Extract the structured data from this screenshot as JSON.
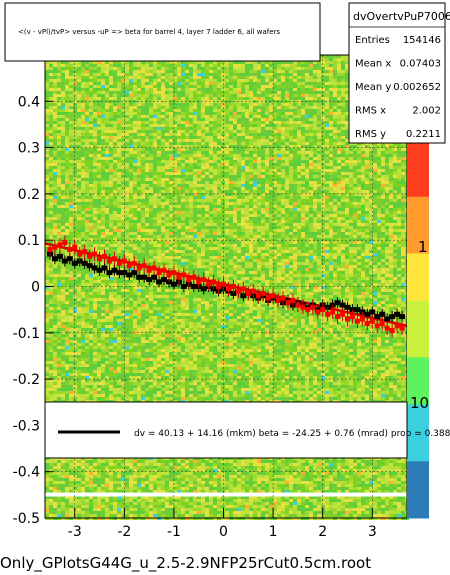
{
  "chart_data": {
    "type": "scatter",
    "title": "<(v - vPl)/tvP> versus -uP => beta for barrel 4, layer 7 ladder 6, all wafers",
    "footer": "Only_GPlotsG44G_u_2.5-2.9NFP25rCut0.5cm.root",
    "xlim": [
      -3.6,
      3.7
    ],
    "ylim": [
      -0.5,
      0.5
    ],
    "x_ticks": [
      -3,
      -2,
      -1,
      0,
      1,
      2,
      3
    ],
    "y_ticks": [
      -0.5,
      -0.4,
      -0.3,
      -0.2,
      -0.1,
      0,
      0.1,
      0.2,
      0.3,
      0.4
    ],
    "y_tick_labels": [
      "-0.5",
      "-0.4",
      "-0.3",
      "-0.2",
      "-0.1",
      "0",
      "0.1",
      "0.2",
      "0.3",
      "0.4"
    ],
    "x_tick_labels": [
      "-3",
      "-2",
      "-1",
      "0",
      "1",
      "2",
      "3"
    ],
    "colorbar_labels": [
      "10",
      "1",
      "10"
    ],
    "stats": {
      "name": "dvOvertvPuP7006",
      "rows": [
        {
          "label": "Entries",
          "value": "154146"
        },
        {
          "label": "Mean x",
          "value": "0.07403"
        },
        {
          "label": "Mean y",
          "value": "0.002652"
        },
        {
          "label": "RMS x",
          "value": "2.002"
        },
        {
          "label": "RMS y",
          "value": "0.2211"
        }
      ]
    },
    "fit_legend": "dv =   40.13 +  14.16 (mkm) beta =  -24.25 +  0.76 (mrad) prob = 0.388",
    "fit_line": {
      "x0": -3.6,
      "y0": 0.093,
      "x1": 3.7,
      "y1": -0.085
    },
    "black_series": [
      [
        -3.5,
        0.07
      ],
      [
        -3.4,
        0.06
      ],
      [
        -3.3,
        0.065
      ],
      [
        -3.2,
        0.055
      ],
      [
        -3.1,
        0.06
      ],
      [
        -3.0,
        0.05
      ],
      [
        -2.9,
        0.055
      ],
      [
        -2.8,
        0.05
      ],
      [
        -2.7,
        0.045
      ],
      [
        -2.6,
        0.04
      ],
      [
        -2.5,
        0.035
      ],
      [
        -2.4,
        0.04
      ],
      [
        -2.3,
        0.03
      ],
      [
        -2.2,
        0.035
      ],
      [
        -2.1,
        0.03
      ],
      [
        -2.0,
        0.03
      ],
      [
        -1.9,
        0.025
      ],
      [
        -1.8,
        0.03
      ],
      [
        -1.7,
        0.02
      ],
      [
        -1.6,
        0.02
      ],
      [
        -1.5,
        0.015
      ],
      [
        -1.4,
        0.02
      ],
      [
        -1.3,
        0.01
      ],
      [
        -1.2,
        0.015
      ],
      [
        -1.1,
        0.01
      ],
      [
        -1.0,
        0.005
      ],
      [
        -0.9,
        0.01
      ],
      [
        -0.8,
        0.0
      ],
      [
        -0.7,
        0.005
      ],
      [
        -0.6,
        0.0
      ],
      [
        -0.5,
        0.0
      ],
      [
        -0.4,
        -0.005
      ],
      [
        -0.3,
        0.0
      ],
      [
        -0.2,
        -0.005
      ],
      [
        -0.1,
        -0.01
      ],
      [
        0.0,
        -0.005
      ],
      [
        0.1,
        -0.01
      ],
      [
        0.2,
        -0.015
      ],
      [
        0.3,
        -0.01
      ],
      [
        0.4,
        -0.02
      ],
      [
        0.5,
        -0.015
      ],
      [
        0.6,
        -0.02
      ],
      [
        0.7,
        -0.025
      ],
      [
        0.8,
        -0.02
      ],
      [
        0.9,
        -0.03
      ],
      [
        1.0,
        -0.025
      ],
      [
        1.1,
        -0.03
      ],
      [
        1.2,
        -0.035
      ],
      [
        1.3,
        -0.03
      ],
      [
        1.4,
        -0.04
      ],
      [
        1.5,
        -0.035
      ],
      [
        1.6,
        -0.04
      ],
      [
        1.7,
        -0.045
      ],
      [
        1.8,
        -0.04
      ],
      [
        1.9,
        -0.05
      ],
      [
        2.0,
        -0.04
      ],
      [
        2.1,
        -0.045
      ],
      [
        2.2,
        -0.04
      ],
      [
        2.3,
        -0.035
      ],
      [
        2.4,
        -0.04
      ],
      [
        2.5,
        -0.045
      ],
      [
        2.6,
        -0.05
      ],
      [
        2.7,
        -0.05
      ],
      [
        2.8,
        -0.055
      ],
      [
        2.9,
        -0.06
      ],
      [
        3.0,
        -0.055
      ],
      [
        3.1,
        -0.065
      ],
      [
        3.2,
        -0.06
      ],
      [
        3.3,
        -0.07
      ],
      [
        3.4,
        -0.065
      ],
      [
        3.5,
        -0.06
      ],
      [
        3.6,
        -0.065
      ]
    ],
    "red_series": [
      [
        -3.5,
        0.08
      ],
      [
        -3.4,
        0.085
      ],
      [
        -3.3,
        0.09
      ],
      [
        -3.2,
        0.095
      ],
      [
        -3.1,
        0.08
      ],
      [
        -3.0,
        0.085
      ],
      [
        -2.9,
        0.07
      ],
      [
        -2.8,
        0.075
      ],
      [
        -2.7,
        0.065
      ],
      [
        -2.6,
        0.07
      ],
      [
        -2.5,
        0.06
      ],
      [
        -2.4,
        0.065
      ],
      [
        -2.3,
        0.055
      ],
      [
        -2.2,
        0.06
      ],
      [
        -2.1,
        0.05
      ],
      [
        -2.0,
        0.055
      ],
      [
        -1.9,
        0.045
      ],
      [
        -1.8,
        0.05
      ],
      [
        -1.7,
        0.04
      ],
      [
        -1.6,
        0.045
      ],
      [
        -1.5,
        0.035
      ],
      [
        -1.4,
        0.04
      ],
      [
        -1.3,
        0.03
      ],
      [
        -1.2,
        0.035
      ],
      [
        -1.1,
        0.025
      ],
      [
        -1.0,
        0.03
      ],
      [
        -0.9,
        0.02
      ],
      [
        -0.8,
        0.025
      ],
      [
        -0.7,
        0.015
      ],
      [
        -0.6,
        0.02
      ],
      [
        -0.5,
        0.01
      ],
      [
        -0.4,
        0.015
      ],
      [
        -0.3,
        0.005
      ],
      [
        -0.2,
        0.01
      ],
      [
        -0.1,
        0.0
      ],
      [
        0.0,
        0.005
      ],
      [
        0.1,
        -0.005
      ],
      [
        0.2,
        0.0
      ],
      [
        0.3,
        -0.01
      ],
      [
        0.4,
        -0.005
      ],
      [
        0.5,
        -0.015
      ],
      [
        0.6,
        -0.01
      ],
      [
        0.7,
        -0.02
      ],
      [
        0.8,
        -0.015
      ],
      [
        0.9,
        -0.025
      ],
      [
        1.0,
        -0.02
      ],
      [
        1.1,
        -0.03
      ],
      [
        1.2,
        -0.025
      ],
      [
        1.3,
        -0.035
      ],
      [
        1.4,
        -0.03
      ],
      [
        1.5,
        -0.04
      ],
      [
        1.6,
        -0.045
      ],
      [
        1.7,
        -0.05
      ],
      [
        1.8,
        -0.045
      ],
      [
        1.9,
        -0.055
      ],
      [
        2.0,
        -0.05
      ],
      [
        2.1,
        -0.06
      ],
      [
        2.2,
        -0.055
      ],
      [
        2.3,
        -0.065
      ],
      [
        2.4,
        -0.06
      ],
      [
        2.5,
        -0.07
      ],
      [
        2.6,
        -0.065
      ],
      [
        2.7,
        -0.075
      ],
      [
        2.8,
        -0.07
      ],
      [
        2.9,
        -0.08
      ],
      [
        3.0,
        -0.075
      ],
      [
        3.1,
        -0.085
      ],
      [
        3.2,
        -0.08
      ],
      [
        3.3,
        -0.09
      ],
      [
        3.4,
        -0.095
      ],
      [
        3.5,
        -0.085
      ],
      [
        3.6,
        -0.09
      ]
    ],
    "colors": {
      "background_map": "#7ed321",
      "fit": "#d60000",
      "black": "#000000",
      "red": "#ff0000",
      "palette": [
        "#2c7bb6",
        "#3ad0e0",
        "#5ff25f",
        "#c8f03c",
        "#ffe63c",
        "#ff9a2c",
        "#ff3c1e"
      ]
    }
  }
}
